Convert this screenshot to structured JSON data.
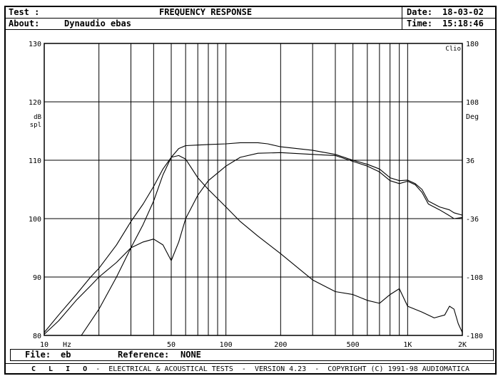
{
  "header": {
    "test_label": "Test :",
    "title": "FREQUENCY RESPONSE",
    "date_label": "Date:",
    "date_value": "18-03-02",
    "about_label": "About:",
    "about_value": "Dynaudio ebas",
    "time_label": "Time:",
    "time_value": "15:18:46"
  },
  "file_bar": {
    "file_label": "File:",
    "file_value": "eb",
    "reference_label": "Reference:",
    "reference_value": "NONE"
  },
  "footer": {
    "brand": "C L I O",
    "text": " -  ELECTRICAL & ACOUSTICAL TESTS  -  VERSION 4.23  -  COPYRIGHT (C) 1991-98 AUDIOMATICA"
  },
  "chart_data": {
    "type": "line",
    "x_scale": "log",
    "xlim": [
      10,
      2000
    ],
    "ylim": [
      80,
      130
    ],
    "y2lim": [
      -180,
      180
    ],
    "xlabel_unit": "Hz",
    "ylabel": "dB spl",
    "y2label": "Deg",
    "corner_label": "Clio",
    "grid": true,
    "x_tick_labels": [
      {
        "value": 10,
        "label": "10"
      },
      {
        "value": 50,
        "label": "50"
      },
      {
        "value": 100,
        "label": "100"
      },
      {
        "value": 200,
        "label": "200"
      },
      {
        "value": 500,
        "label": "500"
      },
      {
        "value": 1000,
        "label": "1K"
      },
      {
        "value": 2000,
        "label": "2K"
      }
    ],
    "x_grid": [
      20,
      30,
      40,
      50,
      60,
      70,
      80,
      90,
      100,
      200,
      300,
      400,
      500,
      600,
      700,
      800,
      900,
      1000
    ],
    "y_ticks": [
      80,
      90,
      100,
      110,
      120,
      130
    ],
    "y2_ticks": [
      -180,
      -108,
      -36,
      36,
      108,
      180
    ],
    "series": [
      {
        "values": [
          [
            10,
            80.2
          ],
          [
            12,
            82.5
          ],
          [
            15,
            86
          ],
          [
            18,
            88.5
          ],
          [
            20,
            90
          ],
          [
            25,
            92.5
          ],
          [
            30,
            95
          ],
          [
            35,
            99
          ],
          [
            40,
            103
          ],
          [
            45,
            107.5
          ],
          [
            50,
            110.5
          ],
          [
            55,
            112
          ],
          [
            60,
            112.5
          ],
          [
            70,
            112.6
          ],
          [
            80,
            112.7
          ],
          [
            100,
            112.8
          ],
          [
            120,
            113
          ],
          [
            150,
            113
          ],
          [
            170,
            112.8
          ],
          [
            200,
            112.3
          ],
          [
            300,
            111.7
          ],
          [
            400,
            111
          ],
          [
            500,
            110
          ],
          [
            600,
            109.3
          ],
          [
            700,
            108.5
          ],
          [
            800,
            107
          ],
          [
            900,
            106.5
          ],
          [
            1000,
            106.6
          ],
          [
            1100,
            106
          ],
          [
            1200,
            105
          ],
          [
            1300,
            103
          ],
          [
            1500,
            102
          ],
          [
            1700,
            101.5
          ],
          [
            1800,
            101
          ],
          [
            2000,
            100.6
          ]
        ]
      },
      {
        "values": [
          [
            10,
            80.5
          ],
          [
            12,
            83.5
          ],
          [
            15,
            87
          ],
          [
            18,
            90
          ],
          [
            20,
            91.5
          ],
          [
            25,
            95.5
          ],
          [
            30,
            99.5
          ],
          [
            35,
            102.5
          ],
          [
            40,
            105.5
          ],
          [
            45,
            108.5
          ],
          [
            50,
            110.5
          ],
          [
            55,
            110.8
          ],
          [
            60,
            110.2
          ],
          [
            70,
            107
          ],
          [
            80,
            105
          ],
          [
            100,
            102
          ],
          [
            120,
            99.5
          ],
          [
            150,
            97
          ],
          [
            200,
            94
          ],
          [
            300,
            89.5
          ],
          [
            400,
            87.5
          ],
          [
            500,
            87
          ],
          [
            600,
            86
          ],
          [
            700,
            85.5
          ],
          [
            800,
            87
          ],
          [
            900,
            88
          ],
          [
            1000,
            85
          ],
          [
            1200,
            84
          ],
          [
            1400,
            83
          ],
          [
            1600,
            83.5
          ],
          [
            1700,
            85
          ],
          [
            1800,
            84.5
          ],
          [
            1900,
            82
          ],
          [
            2000,
            80.5
          ]
        ]
      },
      {
        "values": [
          [
            16,
            80
          ],
          [
            20,
            84.5
          ],
          [
            25,
            90
          ],
          [
            30,
            95
          ],
          [
            35,
            96
          ],
          [
            40,
            96.5
          ],
          [
            45,
            95.5
          ],
          [
            50,
            92.8
          ],
          [
            55,
            96
          ],
          [
            60,
            100
          ],
          [
            70,
            104
          ],
          [
            80,
            106.5
          ],
          [
            100,
            109
          ],
          [
            120,
            110.5
          ],
          [
            150,
            111.2
          ],
          [
            200,
            111.3
          ],
          [
            300,
            111
          ],
          [
            400,
            110.8
          ],
          [
            500,
            109.8
          ],
          [
            600,
            109
          ],
          [
            700,
            108
          ],
          [
            800,
            106.5
          ],
          [
            900,
            106
          ],
          [
            1000,
            106.4
          ],
          [
            1100,
            105.8
          ],
          [
            1200,
            104.5
          ],
          [
            1300,
            102.5
          ],
          [
            1500,
            101.5
          ],
          [
            1700,
            100.5
          ],
          [
            1800,
            100
          ],
          [
            2000,
            100.2
          ]
        ]
      }
    ]
  }
}
